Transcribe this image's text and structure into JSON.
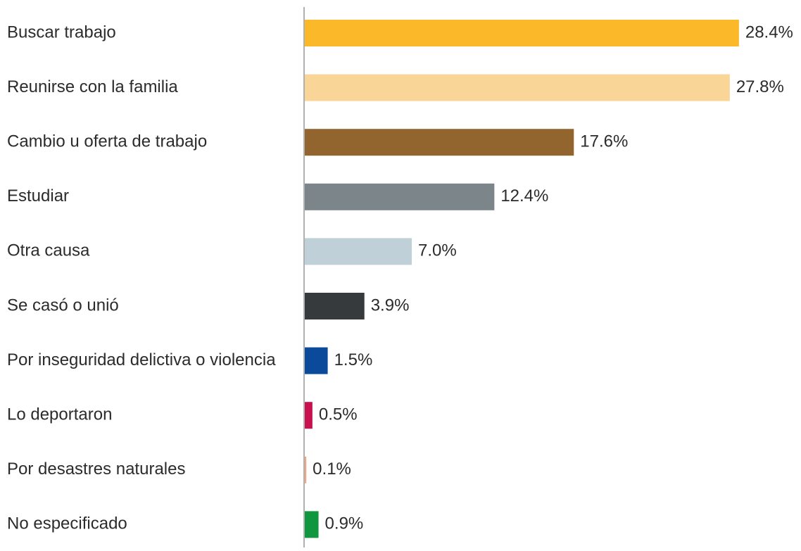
{
  "chart_data": {
    "type": "bar",
    "orientation": "horizontal",
    "categories": [
      "Buscar trabajo",
      "Reunirse con la familia",
      "Cambio u oferta de trabajo",
      "Estudiar",
      "Otra causa",
      "Se casó o unió",
      "Por inseguridad delictiva o violencia",
      "Lo deportaron",
      "Por desastres naturales",
      "No especificado"
    ],
    "values": [
      28.4,
      27.8,
      17.6,
      12.4,
      7.0,
      3.9,
      1.5,
      0.5,
      0.1,
      0.9
    ],
    "value_labels": [
      "28.4%",
      "27.8%",
      "17.6%",
      "12.4%",
      "7.0%",
      "3.9%",
      "1.5%",
      "0.5%",
      "0.1%",
      "0.9%"
    ],
    "colors": [
      "#FBB829",
      "#F9D598",
      "#93652E",
      "#7C858A",
      "#BFD0D8",
      "#373A3C",
      "#0B4A9A",
      "#C8104E",
      "#F4A582",
      "#10963F"
    ],
    "grid": false,
    "legend": "none"
  }
}
